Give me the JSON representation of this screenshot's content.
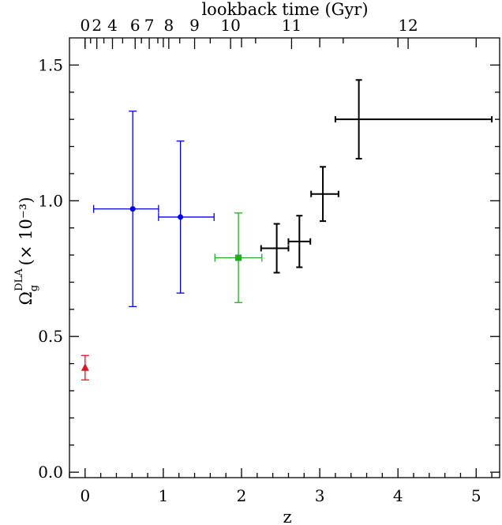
{
  "chart_data": {
    "type": "scatter",
    "xlabel": "z",
    "ylabel_main": "Ω",
    "ylabel_sub": "g",
    "ylabel_sup": "DLA",
    "ylabel_unit": "(× 10⁻³)",
    "top_axis_label": "lookback time (Gyr)",
    "xlim": [
      -0.2,
      5.3
    ],
    "ylim": [
      -0.02,
      1.6
    ],
    "x_ticks": [
      0,
      1,
      2,
      3,
      4,
      5
    ],
    "x_tick_labels": [
      "0",
      "1",
      "2",
      "3",
      "4",
      "5"
    ],
    "y_ticks": [
      0.0,
      0.5,
      1.0,
      1.5
    ],
    "y_tick_labels": [
      "0.0",
      "0.5",
      "1.0",
      "1.5"
    ],
    "top_ticks": [
      {
        "label": "0",
        "z": 0.0
      },
      {
        "label": "2",
        "z": 0.15
      },
      {
        "label": "4",
        "z": 0.35
      },
      {
        "label": "6",
        "z": 0.64
      },
      {
        "label": "7",
        "z": 0.82
      },
      {
        "label": "8",
        "z": 1.07
      },
      {
        "label": "9",
        "z": 1.4
      },
      {
        "label": "10",
        "z": 1.86
      },
      {
        "label": "11",
        "z": 2.64
      },
      {
        "label": "12",
        "z": 4.13
      }
    ],
    "top_minor_ticks": [
      0.07,
      0.24,
      0.48,
      0.72,
      0.93,
      1.21,
      1.6,
      2.18,
      3.3
    ],
    "series": [
      {
        "color": "#e0141e",
        "marker": "triangle",
        "points": [
          {
            "x": 0.0,
            "y": 0.385,
            "xerr": [
              0.0,
              0.0
            ],
            "yerr": [
              0.045,
              0.045
            ]
          }
        ]
      },
      {
        "color": "#0000e8",
        "marker": "circle",
        "points": [
          {
            "x": 0.609,
            "y": 0.97,
            "xerr": [
              0.5,
              0.33
            ],
            "yerr": [
              0.36,
              0.36
            ]
          },
          {
            "x": 1.219,
            "y": 0.94,
            "xerr": [
              0.28,
              0.43
            ],
            "yerr": [
              0.28,
              0.28
            ]
          }
        ]
      },
      {
        "color": "#22aa22",
        "marker": "square",
        "points": [
          {
            "x": 1.96,
            "y": 0.79,
            "xerr": [
              0.3,
              0.3
            ],
            "yerr": [
              0.165,
              0.165
            ]
          }
        ]
      },
      {
        "color": "#000000",
        "marker": "none",
        "points": [
          {
            "x": 2.45,
            "y": 0.825,
            "xerr": [
              0.2,
              0.15
            ],
            "yerr": [
              0.09,
              0.09
            ]
          },
          {
            "x": 2.74,
            "y": 0.85,
            "xerr": [
              0.14,
              0.14
            ],
            "yerr": [
              0.095,
              0.095
            ]
          },
          {
            "x": 3.04,
            "y": 1.025,
            "xerr": [
              0.15,
              0.2
            ],
            "yerr": [
              0.1,
              0.1
            ]
          },
          {
            "x": 3.5,
            "y": 1.3,
            "xerr": [
              0.3,
              1.7
            ],
            "yerr": [
              0.145,
              0.145
            ]
          }
        ]
      }
    ]
  }
}
